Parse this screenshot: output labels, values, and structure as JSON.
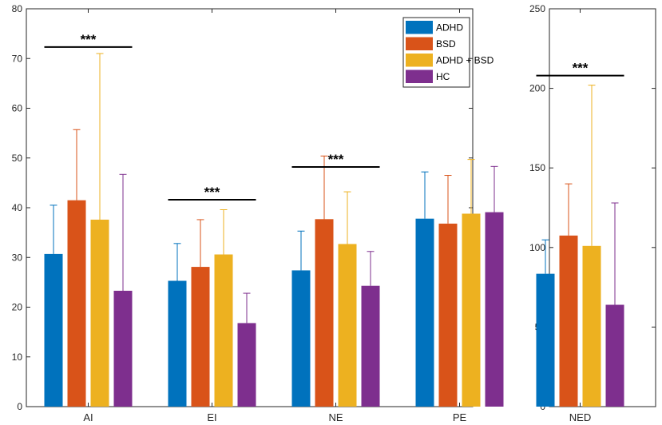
{
  "chart_data": [
    {
      "type": "bar",
      "categories": [
        "AI",
        "EI",
        "NE",
        "PE"
      ],
      "series": [
        {
          "name": "ADHD",
          "color": "#0072BD",
          "values": [
            30.7,
            25.3,
            27.4,
            37.8
          ],
          "errors": [
            9.8,
            7.5,
            7.9,
            9.4
          ]
        },
        {
          "name": "BSD",
          "color": "#D95319",
          "values": [
            41.5,
            28.1,
            37.7,
            36.8
          ],
          "errors": [
            14.2,
            9.5,
            12.7,
            9.7
          ]
        },
        {
          "name": "ADHD + BSD",
          "color": "#EDB120",
          "values": [
            37.6,
            30.6,
            32.7,
            38.8
          ],
          "errors": [
            33.4,
            9.0,
            10.5,
            10.9
          ]
        },
        {
          "name": "HC",
          "color": "#7E2F8E",
          "values": [
            23.3,
            16.8,
            24.3,
            39.1
          ],
          "errors": [
            23.4,
            6.0,
            6.9,
            9.2
          ]
        }
      ],
      "ylim": [
        0,
        80
      ],
      "yticks": [
        0,
        10,
        20,
        30,
        40,
        50,
        60,
        70,
        80
      ],
      "significance": [
        {
          "category": "AI",
          "label": "***",
          "y": 72.3
        },
        {
          "category": "EI",
          "label": "***",
          "y": 41.6
        },
        {
          "category": "NE",
          "label": "***",
          "y": 48.2
        }
      ],
      "legend": {
        "entries": [
          "ADHD",
          "BSD",
          "ADHD + BSD",
          "HC"
        ],
        "location": "top-right"
      }
    },
    {
      "type": "bar",
      "categories": [
        "NED"
      ],
      "series": [
        {
          "name": "ADHD",
          "color": "#0072BD",
          "values": [
            83.5
          ],
          "errors": [
            21.3
          ]
        },
        {
          "name": "BSD",
          "color": "#D95319",
          "values": [
            107.5
          ],
          "errors": [
            32.5
          ]
        },
        {
          "name": "ADHD + BSD",
          "color": "#EDB120",
          "values": [
            101.0
          ],
          "errors": [
            101.0
          ]
        },
        {
          "name": "HC",
          "color": "#7E2F8E",
          "values": [
            64.0
          ],
          "errors": [
            64.0
          ]
        }
      ],
      "ylim": [
        0,
        250
      ],
      "yticks": [
        0,
        50,
        100,
        150,
        200,
        250
      ],
      "significance": [
        {
          "category": "NED",
          "label": "***",
          "y": 208
        }
      ]
    }
  ]
}
